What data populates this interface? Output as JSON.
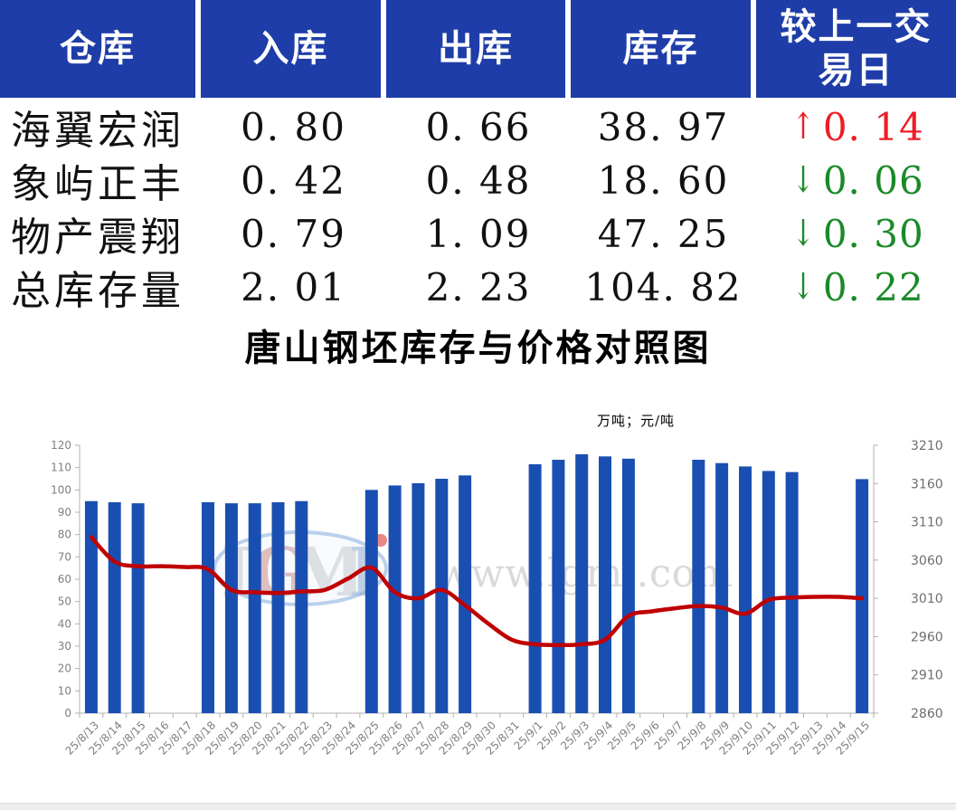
{
  "table": {
    "headers": [
      "仓库",
      "入库",
      "出库",
      "库存",
      "较上一交易日"
    ],
    "rows": [
      {
        "warehouse": "海翼宏润",
        "inbound": "0. 80",
        "outbound": "0. 66",
        "stock": "38. 97",
        "change": "0. 14",
        "direction": "up"
      },
      {
        "warehouse": "象屿正丰",
        "inbound": "0. 42",
        "outbound": "0. 48",
        "stock": "18. 60",
        "change": "0. 06",
        "direction": "down"
      },
      {
        "warehouse": "物产震翔",
        "inbound": "0. 79",
        "outbound": "1. 09",
        "stock": "47. 25",
        "change": "0. 30",
        "direction": "down"
      },
      {
        "warehouse": "总库存量",
        "inbound": "2. 01",
        "outbound": "2. 23",
        "stock": "104. 82",
        "change": "0. 22",
        "direction": "down"
      }
    ],
    "up_arrow": "↑",
    "down_arrow": "↓",
    "colors": {
      "header_bg": "#1e3da8",
      "header_text": "#ffffff",
      "up": "#ee1c24",
      "down": "#1a8a28"
    }
  },
  "chart_data": {
    "type": "bar+line",
    "title": "唐山钢坯库存与价格对照图",
    "unit_label": "万吨；元/吨",
    "categories": [
      "25/8/13",
      "25/8/14",
      "25/8/15",
      "25/8/16",
      "25/8/17",
      "25/8/18",
      "25/8/19",
      "25/8/20",
      "25/8/21",
      "25/8/22",
      "25/8/23",
      "25/8/24",
      "25/8/25",
      "25/8/26",
      "25/8/27",
      "25/8/28",
      "25/8/29",
      "25/8/30",
      "25/8/31",
      "25/9/1",
      "25/9/2",
      "25/9/3",
      "25/9/4",
      "25/9/5",
      "25/9/6",
      "25/9/7",
      "25/9/8",
      "25/9/9",
      "25/9/10",
      "25/9/11",
      "25/9/12",
      "25/9/13",
      "25/9/14",
      "25/9/15"
    ],
    "series": [
      {
        "name": "库存",
        "type": "bar",
        "axis": "left",
        "values": [
          95,
          94.5,
          94,
          null,
          null,
          94.5,
          94,
          94,
          94.5,
          95,
          null,
          null,
          100,
          102,
          103,
          105,
          106.5,
          null,
          null,
          111.5,
          113.5,
          116,
          115,
          114,
          null,
          null,
          113.5,
          112,
          110.5,
          108.5,
          108,
          null,
          null,
          104.82
        ]
      },
      {
        "name": "价格",
        "type": "line",
        "axis": "right",
        "values": [
          3090,
          3058,
          3052,
          3052,
          3051,
          3048,
          3021,
          3018,
          3017,
          3019,
          3021,
          3036,
          3050,
          3018,
          3010,
          3021,
          3001,
          2977,
          2956,
          2950,
          2949,
          2950,
          2956,
          2987,
          2993,
          2997,
          3000,
          2998,
          2990,
          3008,
          3011,
          3012,
          3012,
          3010
        ]
      }
    ],
    "left_axis": {
      "min": 0,
      "max": 120,
      "step": 10
    },
    "right_axis": {
      "min": 2860,
      "max": 3210,
      "step": 50
    },
    "grid": false,
    "legend_position": "none",
    "colors": {
      "bar": "#1a4fb2",
      "line": "#c00000"
    }
  },
  "watermark": {
    "logo_text": "LGMI",
    "site_text": "www.lgmi.com"
  }
}
